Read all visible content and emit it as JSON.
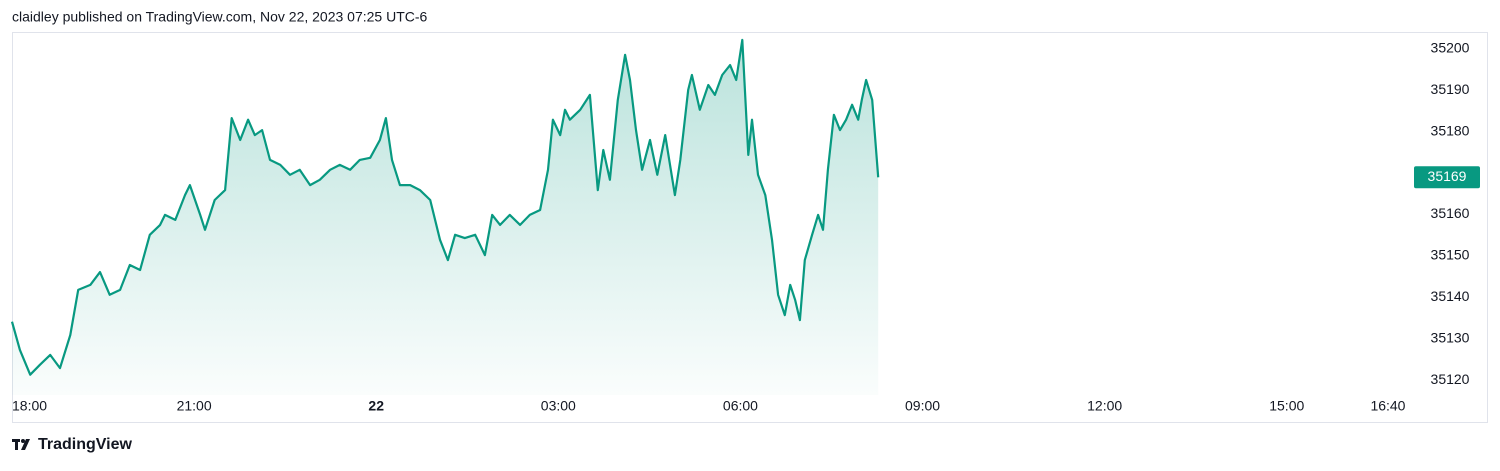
{
  "header": {
    "text": "claidley published on TradingView.com, Nov 22, 2023 07:25 UTC-6"
  },
  "footer": {
    "brand": "TradingView"
  },
  "chart_data": {
    "type": "area",
    "color": "#089981",
    "x": [
      0,
      0.13,
      0.3,
      0.46,
      0.63,
      0.79,
      0.96,
      1.09,
      1.29,
      1.45,
      1.61,
      1.78,
      1.94,
      2.11,
      2.27,
      2.44,
      2.52,
      2.69,
      2.85,
      2.93,
      3.1,
      3.18,
      3.34,
      3.51,
      3.62,
      3.76,
      3.89,
      4.0,
      4.12,
      4.25,
      4.42,
      4.58,
      4.74,
      4.91,
      5.07,
      5.24,
      5.4,
      5.57,
      5.73,
      5.9,
      6.06,
      6.16,
      6.26,
      6.39,
      6.56,
      6.72,
      6.89,
      7.05,
      7.18,
      7.3,
      7.46,
      7.63,
      7.79,
      7.91,
      8.04,
      8.2,
      8.37,
      8.53,
      8.7,
      8.83,
      8.91,
      9.03,
      9.11,
      9.19,
      9.36,
      9.52,
      9.65,
      9.74,
      9.85,
      9.98,
      10.1,
      10.18,
      10.28,
      10.38,
      10.51,
      10.63,
      10.76,
      10.92,
      11.01,
      11.14,
      11.2,
      11.33,
      11.47,
      11.58,
      11.7,
      11.83,
      11.93,
      12.03,
      12.13,
      12.19,
      12.29,
      12.41,
      12.52,
      12.62,
      12.73,
      12.82,
      12.9,
      12.98,
      13.06,
      13.18,
      13.28,
      13.36,
      13.44,
      13.54,
      13.64,
      13.74,
      13.84,
      13.94,
      14.0,
      14.07,
      14.17,
      14.27
    ],
    "values": [
      35134.1,
      35127.3,
      35121.3,
      35123.7,
      35126.1,
      35122.9,
      35130.9,
      35141.8,
      35143.0,
      35146.1,
      35140.6,
      35141.8,
      35147.8,
      35146.6,
      35155.1,
      35157.5,
      35159.9,
      35158.7,
      35164.7,
      35167.1,
      35159.9,
      35156.3,
      35163.5,
      35165.9,
      35183.3,
      35178.0,
      35182.9,
      35179.2,
      35180.4,
      35173.2,
      35172.0,
      35169.6,
      35170.8,
      35167.1,
      35168.4,
      35170.8,
      35172.0,
      35170.8,
      35173.2,
      35173.7,
      35178.0,
      35183.3,
      35173.2,
      35167.1,
      35167.1,
      35165.9,
      35163.5,
      35153.9,
      35149.0,
      35155.1,
      35154.3,
      35155.1,
      35150.2,
      35159.9,
      35157.5,
      35159.9,
      35157.5,
      35159.9,
      35161.1,
      35170.8,
      35182.9,
      35179.2,
      35185.3,
      35182.9,
      35185.3,
      35188.9,
      35165.9,
      35175.6,
      35168.4,
      35187.7,
      35198.6,
      35192.5,
      35180.4,
      35170.8,
      35178.0,
      35169.6,
      35179.2,
      35164.7,
      35173.2,
      35190.1,
      35193.7,
      35185.3,
      35191.3,
      35188.9,
      35193.7,
      35196.1,
      35192.5,
      35202.2,
      35174.4,
      35182.9,
      35169.6,
      35164.7,
      35153.9,
      35140.6,
      35135.7,
      35143.0,
      35139.4,
      35134.5,
      35149.0,
      35155.1,
      35159.9,
      35156.3,
      35170.8,
      35184.1,
      35180.4,
      35182.9,
      35186.5,
      35182.9,
      35187.7,
      35192.5,
      35187.7,
      35169
    ],
    "last_price": 35169,
    "xlim": [
      0,
      23.03
    ],
    "xticks": [
      {
        "value": 0,
        "label": "18:00"
      },
      {
        "value": 3,
        "label": "21:00"
      },
      {
        "value": 6,
        "label": "22"
      },
      {
        "value": 9,
        "label": "03:00"
      },
      {
        "value": 12,
        "label": "06:00"
      },
      {
        "value": 15,
        "label": "09:00"
      },
      {
        "value": 18,
        "label": "12:00"
      },
      {
        "value": 21,
        "label": "15:00"
      },
      {
        "value": 22.667,
        "label": "16:40"
      }
    ],
    "ylim": [
      35116.4,
      35204.1
    ],
    "yticks": [
      35120,
      35130,
      35140,
      35150,
      35160,
      35180,
      35190,
      35200
    ]
  }
}
